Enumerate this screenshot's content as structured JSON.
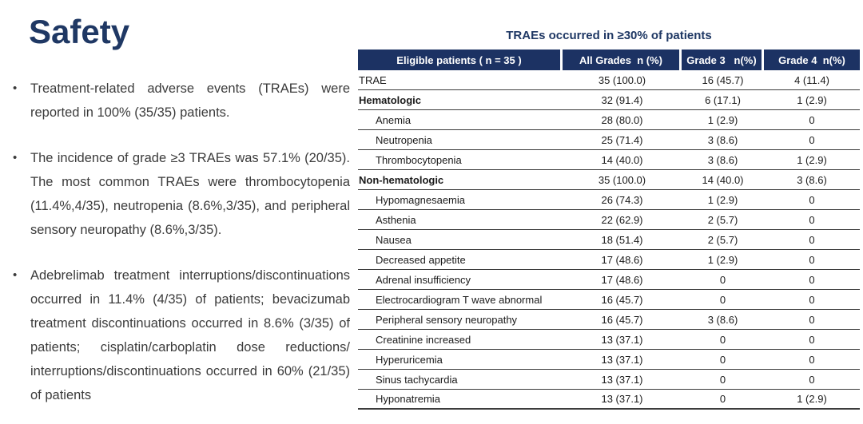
{
  "slide": {
    "title": "Safety",
    "bullet_marker": "•",
    "bullets": [
      "Treatment-related adverse events (TRAEs) were reported in 100% (35/35) patients.",
      "The incidence of grade ≥3 TRAEs was 57.1% (20/35). The most common TRAEs were thrombocytopenia (11.4%,4/35), neutropenia (8.6%,3/35), and peripheral sensory neuropathy (8.6%,3/35).",
      "Adebrelimab treatment interruptions/discontinuations occurred in 11.4% (4/35) of patients; bevacizumab treatment discontinuations occurred in 8.6% (3/35) of patients; cisplatin/carboplatin dose reductions/ interruptions/discontinuations occurred in 60% (21/35) of patients"
    ]
  },
  "table": {
    "title": "TRAEs occurred in ≥30% of patients",
    "columns": [
      "Eligible patients ( n = 35 )",
      "All Grades  n (%)",
      "Grade 3   n(%)",
      "Grade 4  n(%)"
    ],
    "rows": [
      {
        "label": "TRAE",
        "indent": false,
        "bold": false,
        "all_grades": "35 (100.0)",
        "grade3": "16 (45.7)",
        "grade4": "4 (11.4)"
      },
      {
        "label": "Hematologic",
        "indent": false,
        "bold": true,
        "all_grades": "32 (91.4)",
        "grade3": "6 (17.1)",
        "grade4": "1 (2.9)"
      },
      {
        "label": "Anemia",
        "indent": true,
        "bold": false,
        "all_grades": "28 (80.0)",
        "grade3": "1 (2.9)",
        "grade4": "0"
      },
      {
        "label": "Neutropenia",
        "indent": true,
        "bold": false,
        "all_grades": "25 (71.4)",
        "grade3": "3 (8.6)",
        "grade4": "0"
      },
      {
        "label": "Thrombocytopenia",
        "indent": true,
        "bold": false,
        "all_grades": "14 (40.0)",
        "grade3": "3 (8.6)",
        "grade4": "1 (2.9)"
      },
      {
        "label": "Non-hematologic",
        "indent": false,
        "bold": true,
        "all_grades": "35 (100.0)",
        "grade3": "14 (40.0)",
        "grade4": "3 (8.6)"
      },
      {
        "label": "Hypomagnesaemia",
        "indent": true,
        "bold": false,
        "all_grades": "26 (74.3)",
        "grade3": "1 (2.9)",
        "grade4": "0"
      },
      {
        "label": "Asthenia",
        "indent": true,
        "bold": false,
        "all_grades": "22 (62.9)",
        "grade3": "2 (5.7)",
        "grade4": "0"
      },
      {
        "label": "Nausea",
        "indent": true,
        "bold": false,
        "all_grades": "18 (51.4)",
        "grade3": "2 (5.7)",
        "grade4": "0"
      },
      {
        "label": "Decreased appetite",
        "indent": true,
        "bold": false,
        "all_grades": "17 (48.6)",
        "grade3": "1 (2.9)",
        "grade4": "0"
      },
      {
        "label": "Adrenal insufficiency",
        "indent": true,
        "bold": false,
        "all_grades": "17 (48.6)",
        "grade3": "0",
        "grade4": "0"
      },
      {
        "label": "Electrocardiogram T wave abnormal",
        "indent": true,
        "bold": false,
        "all_grades": "16 (45.7)",
        "grade3": "0",
        "grade4": "0"
      },
      {
        "label": "Peripheral sensory neuropathy",
        "indent": true,
        "bold": false,
        "all_grades": "16 (45.7)",
        "grade3": "3 (8.6)",
        "grade4": "0"
      },
      {
        "label": "Creatinine increased",
        "indent": true,
        "bold": false,
        "all_grades": "13 (37.1)",
        "grade3": "0",
        "grade4": "0"
      },
      {
        "label": "Hyperuricemia",
        "indent": true,
        "bold": false,
        "all_grades": "13 (37.1)",
        "grade3": "0",
        "grade4": "0"
      },
      {
        "label": "Sinus tachycardia",
        "indent": true,
        "bold": false,
        "all_grades": "13 (37.1)",
        "grade3": "0",
        "grade4": "0"
      },
      {
        "label": "Hyponatremia",
        "indent": true,
        "bold": false,
        "all_grades": "13 (37.1)",
        "grade3": "0",
        "grade4": "1 (2.9)"
      }
    ]
  },
  "colors": {
    "accent_navy": "#1F3864",
    "header_bg": "#1C3263",
    "header_text": "#FFFFFF",
    "body_text": "#3B3B3B",
    "table_text": "#1A1A1A",
    "rule": "#3C3C3C",
    "background": "#FFFFFF"
  }
}
